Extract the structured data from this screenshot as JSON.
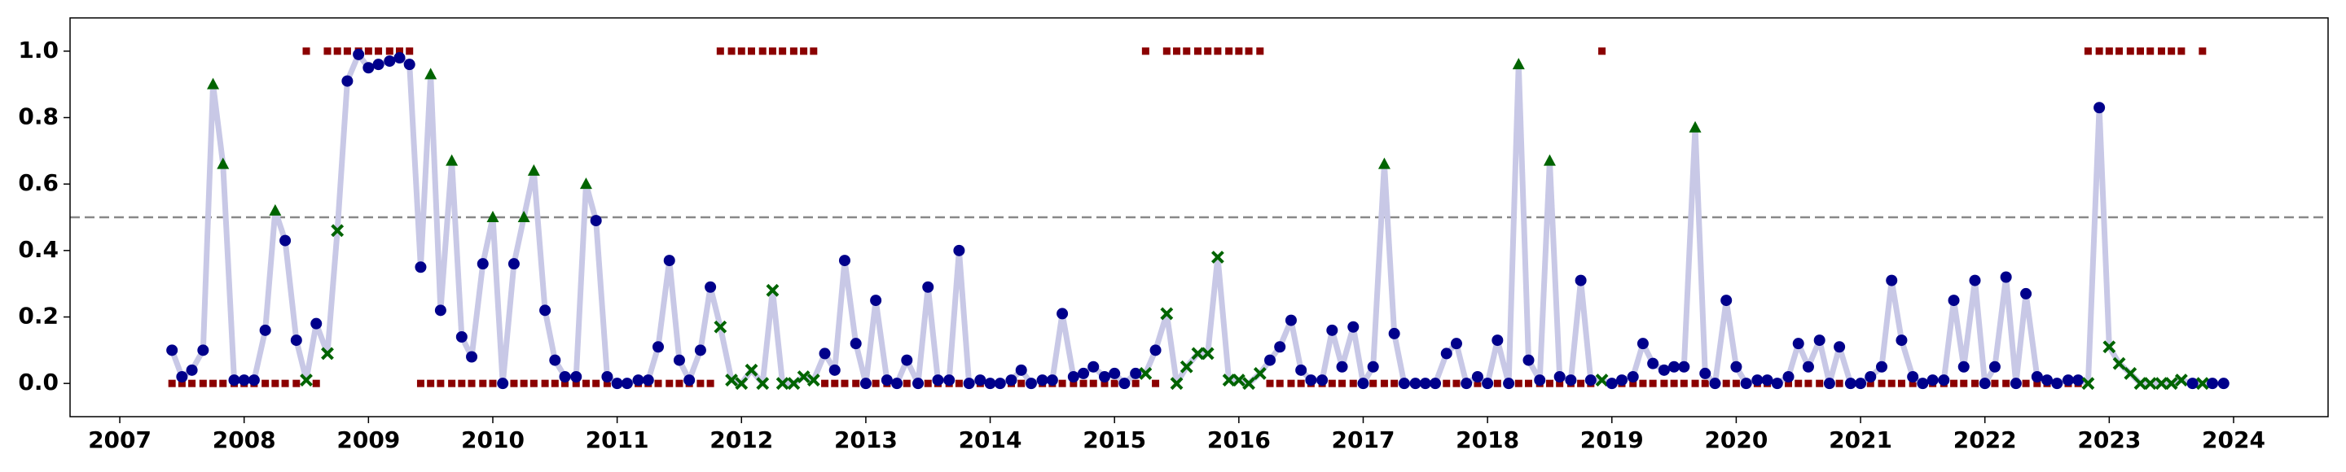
{
  "chart_data": {
    "type": "line",
    "x": [
      2007.42,
      2007.5,
      2007.58,
      2007.67,
      2007.75,
      2007.83,
      2007.92,
      2008,
      2008.08,
      2008.17,
      2008.25,
      2008.33,
      2008.42,
      2008.5,
      2008.58,
      2008.67,
      2008.75,
      2008.83,
      2008.92,
      2009,
      2009.08,
      2009.17,
      2009.25,
      2009.33,
      2009.42,
      2009.5,
      2009.58,
      2009.67,
      2009.75,
      2009.83,
      2009.92,
      2010,
      2010.08,
      2010.17,
      2010.25,
      2010.33,
      2010.42,
      2010.5,
      2010.58,
      2010.67,
      2010.75,
      2010.83,
      2010.92,
      2011,
      2011.08,
      2011.17,
      2011.25,
      2011.33,
      2011.42,
      2011.5,
      2011.58,
      2011.67,
      2011.75,
      2011.83,
      2011.92,
      2012,
      2012.08,
      2012.17,
      2012.25,
      2012.33,
      2012.42,
      2012.5,
      2012.58,
      2012.67,
      2012.75,
      2012.83,
      2012.92,
      2013,
      2013.08,
      2013.17,
      2013.25,
      2013.33,
      2013.42,
      2013.5,
      2013.58,
      2013.67,
      2013.75,
      2013.83,
      2013.92,
      2014,
      2014.08,
      2014.17,
      2014.25,
      2014.33,
      2014.42,
      2014.5,
      2014.58,
      2014.67,
      2014.75,
      2014.83,
      2014.92,
      2015,
      2015.08,
      2015.17,
      2015.25,
      2015.33,
      2015.42,
      2015.5,
      2015.58,
      2015.67,
      2015.75,
      2015.83,
      2015.92,
      2016,
      2016.08,
      2016.17,
      2016.25,
      2016.33,
      2016.42,
      2016.5,
      2016.58,
      2016.67,
      2016.75,
      2016.83,
      2016.92,
      2017,
      2017.08,
      2017.17,
      2017.25,
      2017.33,
      2017.42,
      2017.5,
      2017.58,
      2017.67,
      2017.75,
      2017.83,
      2017.92,
      2018,
      2018.08,
      2018.17,
      2018.25,
      2018.33,
      2018.42,
      2018.5,
      2018.58,
      2018.67,
      2018.75,
      2018.83,
      2018.92,
      2019,
      2019.08,
      2019.17,
      2019.25,
      2019.33,
      2019.42,
      2019.5,
      2019.58,
      2019.67,
      2019.75,
      2019.83,
      2019.92,
      2020,
      2020.08,
      2020.17,
      2020.25,
      2020.33,
      2020.42,
      2020.5,
      2020.58,
      2020.67,
      2020.75,
      2020.83,
      2020.92,
      2021,
      2021.08,
      2021.17,
      2021.25,
      2021.33,
      2021.42,
      2021.5,
      2021.58,
      2021.67,
      2021.75,
      2021.83,
      2021.92,
      2022,
      2022.08,
      2022.17,
      2022.25,
      2022.33,
      2022.42,
      2022.5,
      2022.58,
      2022.67,
      2022.75,
      2022.83,
      2022.92,
      2023,
      2023.08,
      2023.17,
      2023.25,
      2023.33,
      2023.42,
      2023.5,
      2023.58,
      2023.67,
      2023.75,
      2023.83,
      2023.92
    ],
    "series": [
      {
        "color": "#c8c8e6",
        "values": [
          0.1,
          0.02,
          0.04,
          0.1,
          0.9,
          0.66,
          0.01,
          0.01,
          0.01,
          0.16,
          0.52,
          0.43,
          0.13,
          0.01,
          0.18,
          0.09,
          0.46,
          0.91,
          0.99,
          0.95,
          0.96,
          0.97,
          0.98,
          0.96,
          0.35,
          0.93,
          0.22,
          0.67,
          0.14,
          0.08,
          0.36,
          0.5,
          0.0,
          0.36,
          0.5,
          0.64,
          0.22,
          0.07,
          0.02,
          0.02,
          0.6,
          0.49,
          0.02,
          0.0,
          0.0,
          0.01,
          0.01,
          0.11,
          0.37,
          0.07,
          0.01,
          0.1,
          0.29,
          0.17,
          0.01,
          0.0,
          0.04,
          0.0,
          0.28,
          0.0,
          0.0,
          0.02,
          0.01,
          0.09,
          0.04,
          0.37,
          0.12,
          0.0,
          0.25,
          0.01,
          0.0,
          0.07,
          0.0,
          0.29,
          0.01,
          0.01,
          0.4,
          0.0,
          0.01,
          0.0,
          0.0,
          0.01,
          0.04,
          0.0,
          0.01,
          0.01,
          0.21,
          0.02,
          0.03,
          0.05,
          0.02,
          0.03,
          0.0,
          0.03,
          0.03,
          0.1,
          0.21,
          0.0,
          0.05,
          0.09,
          0.09,
          0.38,
          0.01,
          0.01,
          0.0,
          0.03,
          0.07,
          0.11,
          0.19,
          0.04,
          0.01,
          0.01,
          0.16,
          0.05,
          0.17,
          0.0,
          0.05,
          0.66,
          0.15,
          0.0,
          0.0,
          0.0,
          0.0,
          0.09,
          0.12,
          0.0,
          0.02,
          0.0,
          0.13,
          0.0,
          0.96,
          0.07,
          0.01,
          0.67,
          0.02,
          0.01,
          0.31,
          0.01,
          0.01,
          0.0,
          0.01,
          0.02,
          0.12,
          0.06,
          0.04,
          0.05,
          0.05,
          0.77,
          0.03,
          0.0,
          0.25,
          0.05,
          0.0,
          0.01,
          0.01,
          0.0,
          0.02,
          0.12,
          0.05,
          0.13,
          0.0,
          0.11,
          0.0,
          0.0,
          0.02,
          0.05,
          0.31,
          0.13,
          0.02,
          0.0,
          0.01,
          0.01,
          0.25,
          0.05,
          0.31,
          0.0,
          0.05,
          0.32,
          0.0,
          0.27,
          0.02,
          0.01,
          0.0,
          0.01,
          0.01,
          0.0,
          0.83,
          0.11,
          0.06,
          0.03,
          0.0,
          0.0,
          0.0,
          0.0,
          0.01,
          0.0,
          0.0,
          0.0,
          0.0
        ],
        "markers": [
          "o",
          "o",
          "o",
          "o",
          "^",
          "^",
          "o",
          "o",
          "o",
          "o",
          "^",
          "o",
          "o",
          "x",
          "o",
          "x",
          "x",
          "o",
          "o",
          "o",
          "o",
          "o",
          "o",
          "o",
          "o",
          "^",
          "o",
          "^",
          "o",
          "o",
          "o",
          "^",
          "o",
          "o",
          "^",
          "^",
          "o",
          "o",
          "o",
          "o",
          "^",
          "o",
          "o",
          "o",
          "o",
          "o",
          "o",
          "o",
          "o",
          "o",
          "o",
          "o",
          "o",
          "x",
          "x",
          "x",
          "x",
          "x",
          "x",
          "x",
          "x",
          "x",
          "x",
          "o",
          "o",
          "o",
          "o",
          "o",
          "o",
          "o",
          "o",
          "o",
          "o",
          "o",
          "o",
          "o",
          "o",
          "o",
          "o",
          "o",
          "o",
          "o",
          "o",
          "o",
          "o",
          "o",
          "o",
          "o",
          "o",
          "o",
          "o",
          "o",
          "o",
          "o",
          "x",
          "o",
          "x",
          "x",
          "x",
          "x",
          "x",
          "x",
          "x",
          "x",
          "x",
          "x",
          "o",
          "o",
          "o",
          "o",
          "o",
          "o",
          "o",
          "o",
          "o",
          "o",
          "o",
          "^",
          "o",
          "o",
          "o",
          "o",
          "o",
          "o",
          "o",
          "o",
          "o",
          "o",
          "o",
          "o",
          "^",
          "o",
          "o",
          "^",
          "o",
          "o",
          "o",
          "o",
          "x",
          "o",
          "o",
          "o",
          "o",
          "o",
          "o",
          "o",
          "o",
          "^",
          "o",
          "o",
          "o",
          "o",
          "o",
          "o",
          "o",
          "o",
          "o",
          "o",
          "o",
          "o",
          "o",
          "o",
          "o",
          "o",
          "o",
          "o",
          "o",
          "o",
          "o",
          "o",
          "o",
          "o",
          "o",
          "o",
          "o",
          "o",
          "o",
          "o",
          "o",
          "o",
          "o",
          "o",
          "o",
          "o",
          "o",
          "x",
          "o",
          "x",
          "x",
          "x",
          "x",
          "x",
          "x",
          "x",
          "x",
          "o",
          "x",
          "o",
          "o"
        ],
        "marker_colors": {
          "o": "#00008b",
          "^": "#006400",
          "x": "#006400"
        }
      },
      {
        "color": "#8b0000",
        "marker": "s",
        "values": [
          0,
          0,
          0,
          0,
          0,
          0,
          0,
          0,
          0,
          0,
          0,
          0,
          0,
          1,
          0,
          1,
          1,
          1,
          1,
          1,
          1,
          1,
          1,
          1,
          0,
          0,
          0,
          0,
          0,
          0,
          0,
          0,
          0,
          0,
          0,
          0,
          0,
          0,
          0,
          0,
          0,
          0,
          0,
          0,
          0,
          0,
          0,
          0,
          0,
          0,
          0,
          0,
          0,
          1,
          1,
          1,
          1,
          1,
          1,
          1,
          1,
          1,
          1,
          0,
          0,
          0,
          0,
          0,
          0,
          0,
          0,
          0,
          0,
          0,
          0,
          0,
          0,
          0,
          0,
          0,
          0,
          0,
          0,
          0,
          0,
          0,
          0,
          0,
          0,
          0,
          0,
          0,
          0,
          0,
          1,
          0,
          1,
          1,
          1,
          1,
          1,
          1,
          1,
          1,
          1,
          1,
          0,
          0,
          0,
          0,
          0,
          0,
          0,
          0,
          0,
          0,
          0,
          0,
          0,
          0,
          0,
          0,
          0,
          0,
          0,
          0,
          0,
          0,
          0,
          0,
          0,
          0,
          0,
          0,
          0,
          0,
          0,
          0,
          1,
          0,
          0,
          0,
          0,
          0,
          0,
          0,
          0,
          0,
          0,
          0,
          0,
          0,
          0,
          0,
          0,
          0,
          0,
          0,
          0,
          0,
          0,
          0,
          0,
          0,
          0,
          0,
          0,
          0,
          0,
          0,
          0,
          0,
          0,
          0,
          0,
          0,
          0,
          0,
          0,
          0,
          0,
          0,
          0,
          0,
          0,
          1,
          1,
          1,
          1,
          1,
          1,
          1,
          1,
          1,
          1,
          0,
          1,
          0,
          0
        ]
      }
    ],
    "hline": 0.5,
    "hline_color": "#888888",
    "xlim": [
      2006.6,
      2024.76
    ],
    "ylim": [
      -0.1,
      1.1
    ],
    "xticks": [
      2007,
      2008,
      2009,
      2010,
      2011,
      2012,
      2013,
      2014,
      2015,
      2016,
      2017,
      2018,
      2019,
      2020,
      2021,
      2022,
      2023,
      2024
    ],
    "yticks": [
      {
        "value": 0,
        "label": "0.0"
      },
      0.2,
      0.4,
      0.6,
      0.8,
      {
        "value": 1,
        "label": "1.0"
      }
    ]
  }
}
